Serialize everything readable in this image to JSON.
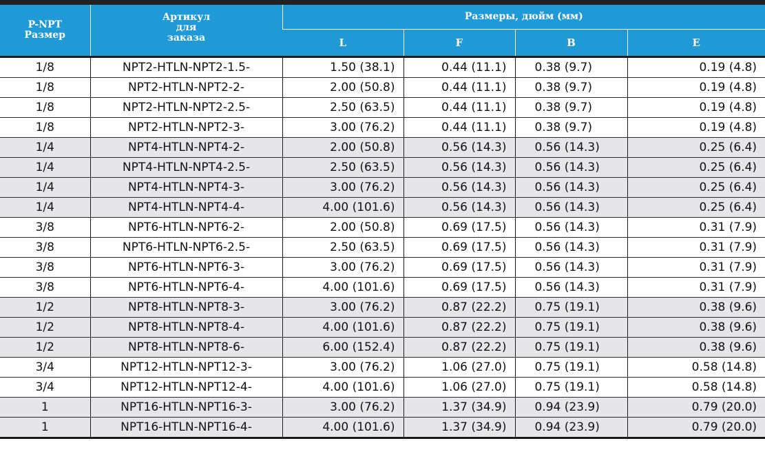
{
  "header": {
    "p_npt_line1": "P-NPT",
    "p_npt_line2": "Размер",
    "article_line1": "Артикул",
    "article_line2": "для",
    "article_line3": "заказа",
    "dimensions_group": "Размеры, дюйм (мм)",
    "col_L": "L",
    "col_F": "F",
    "col_B": "B",
    "col_E": "E"
  },
  "colors": {
    "header_bg": "#1f9ad7",
    "header_text": "#ffffff",
    "shaded_row_bg": "#e6e6e8",
    "top_bar": "#222222"
  },
  "rows": [
    {
      "size": "1/8",
      "article": "NPT2-HTLN-NPT2-1.5-",
      "L": "1.50 (38.1)",
      "F": "0.44 (11.1)",
      "B": "0.38 (9.7)",
      "E": "0.19 (4.8)",
      "shaded": false
    },
    {
      "size": "1/8",
      "article": "NPT2-HTLN-NPT2-2-",
      "L": "2.00 (50.8)",
      "F": "0.44 (11.1)",
      "B": "0.38 (9.7)",
      "E": "0.19 (4.8)",
      "shaded": false
    },
    {
      "size": "1/8",
      "article": "NPT2-HTLN-NPT2-2.5-",
      "L": "2.50 (63.5)",
      "F": "0.44 (11.1)",
      "B": "0.38 (9.7)",
      "E": "0.19 (4.8)",
      "shaded": false
    },
    {
      "size": "1/8",
      "article": "NPT2-HTLN-NPT2-3-",
      "L": "3.00 (76.2)",
      "F": "0.44 (11.1)",
      "B": "0.38 (9.7)",
      "E": "0.19 (4.8)",
      "shaded": false
    },
    {
      "size": "1/4",
      "article": "NPT4-HTLN-NPT4-2-",
      "L": "2.00 (50.8)",
      "F": "0.56 (14.3)",
      "B": "0.56 (14.3)",
      "E": "0.25 (6.4)",
      "shaded": true
    },
    {
      "size": "1/4",
      "article": "NPT4-HTLN-NPT4-2.5-",
      "L": "2.50 (63.5)",
      "F": "0.56 (14.3)",
      "B": "0.56 (14.3)",
      "E": "0.25 (6.4)",
      "shaded": true
    },
    {
      "size": "1/4",
      "article": "NPT4-HTLN-NPT4-3-",
      "L": "3.00 (76.2)",
      "F": "0.56 (14.3)",
      "B": "0.56 (14.3)",
      "E": "0.25 (6.4)",
      "shaded": true
    },
    {
      "size": "1/4",
      "article": "NPT4-HTLN-NPT4-4-",
      "L": "4.00 (101.6)",
      "F": "0.56 (14.3)",
      "B": "0.56 (14.3)",
      "E": "0.25 (6.4)",
      "shaded": true
    },
    {
      "size": "3/8",
      "article": "NPT6-HTLN-NPT6-2-",
      "L": "2.00 (50.8)",
      "F": "0.69 (17.5)",
      "B": "0.56 (14.3)",
      "E": "0.31 (7.9)",
      "shaded": false
    },
    {
      "size": "3/8",
      "article": "NPT6-HTLN-NPT6-2.5-",
      "L": "2.50 (63.5)",
      "F": "0.69 (17.5)",
      "B": "0.56 (14.3)",
      "E": "0.31 (7.9)",
      "shaded": false
    },
    {
      "size": "3/8",
      "article": "NPT6-HTLN-NPT6-3-",
      "L": "3.00 (76.2)",
      "F": "0.69 (17.5)",
      "B": "0.56 (14.3)",
      "E": "0.31 (7.9)",
      "shaded": false
    },
    {
      "size": "3/8",
      "article": "NPT6-HTLN-NPT6-4-",
      "L": "4.00 (101.6)",
      "F": "0.69 (17.5)",
      "B": "0.56 (14.3)",
      "E": "0.31 (7.9)",
      "shaded": false
    },
    {
      "size": "1/2",
      "article": "NPT8-HTLN-NPT8-3-",
      "L": "3.00 (76.2)",
      "F": "0.87 (22.2)",
      "B": "0.75 (19.1)",
      "E": "0.38 (9.6)",
      "shaded": true
    },
    {
      "size": "1/2",
      "article": "NPT8-HTLN-NPT8-4-",
      "L": "4.00 (101.6)",
      "F": "0.87 (22.2)",
      "B": "0.75 (19.1)",
      "E": "0.38 (9.6)",
      "shaded": true
    },
    {
      "size": "1/2",
      "article": "NPT8-HTLN-NPT8-6-",
      "L": "6.00 (152.4)",
      "F": "0.87 (22.2)",
      "B": "0.75 (19.1)",
      "E": "0.38 (9.6)",
      "shaded": true
    },
    {
      "size": "3/4",
      "article": "NPT12-HTLN-NPT12-3-",
      "L": "3.00 (76.2)",
      "F": "1.06 (27.0)",
      "B": "0.75 (19.1)",
      "E": "0.58 (14.8)",
      "shaded": false
    },
    {
      "size": "3/4",
      "article": "NPT12-HTLN-NPT12-4-",
      "L": "4.00 (101.6)",
      "F": "1.06 (27.0)",
      "B": "0.75 (19.1)",
      "E": "0.58 (14.8)",
      "shaded": false
    },
    {
      "size": "1",
      "article": "NPT16-HTLN-NPT16-3-",
      "L": "3.00 (76.2)",
      "F": "1.37 (34.9)",
      "B": "0.94 (23.9)",
      "E": "0.79 (20.0)",
      "shaded": true
    },
    {
      "size": "1",
      "article": "NPT16-HTLN-NPT16-4-",
      "L": "4.00 (101.6)",
      "F": "1.37 (34.9)",
      "B": "0.94 (23.9)",
      "E": "0.79 (20.0)",
      "shaded": true
    }
  ]
}
